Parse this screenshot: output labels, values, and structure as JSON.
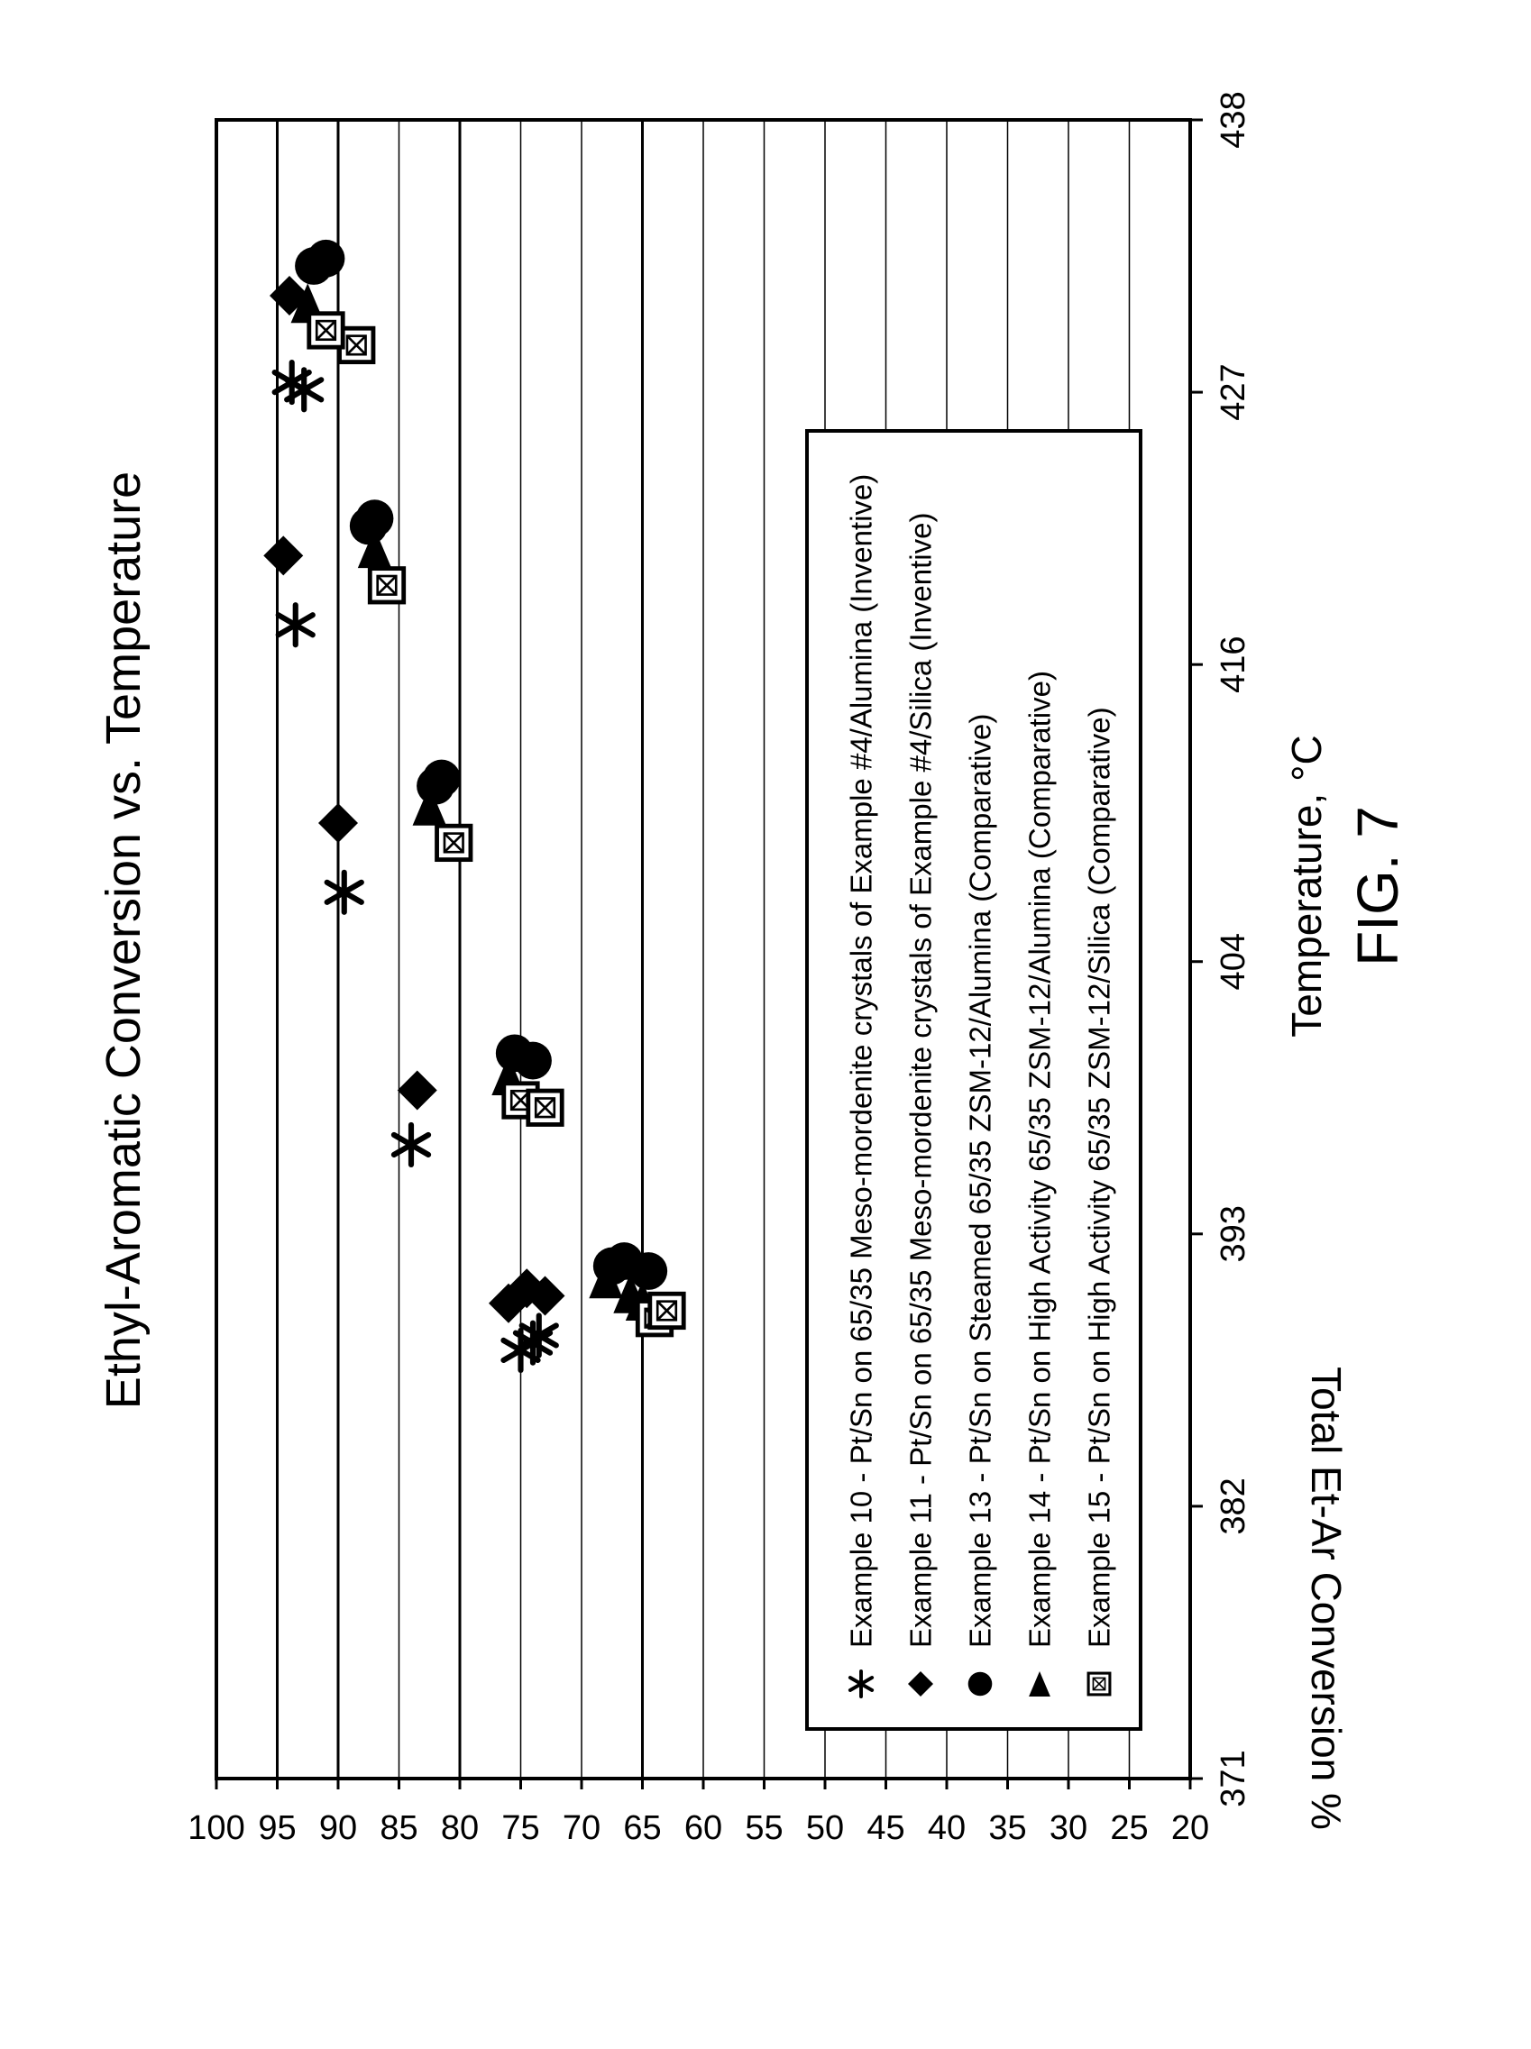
{
  "chart_data": {
    "type": "scatter",
    "title": "Ethyl-Aromatic Conversion vs. Temperature",
    "xlabel": "Temperature, °C",
    "ylabel": "Total Et-Ar Conversion %",
    "xlim": [
      371,
      438
    ],
    "ylim": [
      20,
      100
    ],
    "x_ticks": [
      "371",
      "382",
      "393",
      "404",
      "416",
      "427",
      "438"
    ],
    "y_ticks": [
      "20",
      "25",
      "30",
      "35",
      "40",
      "45",
      "50",
      "55",
      "60",
      "65",
      "70",
      "75",
      "80",
      "85",
      "90",
      "95",
      "100"
    ],
    "major_gridlines": [
      65,
      80,
      90,
      95
    ],
    "grid": true,
    "legend_position": "bottom",
    "series": [
      {
        "name": "Example 10 - Pt/Sn on 65/35 Meso-mordenite crystals of Example #4/Alumina (Inventive)",
        "marker": "asterisk",
        "points": [
          [
            388.3,
            75.0
          ],
          [
            388.6,
            74.0
          ],
          [
            388.9,
            73.5
          ],
          [
            396.6,
            84.0
          ],
          [
            406.8,
            89.5
          ],
          [
            417.6,
            93.5
          ],
          [
            427.1,
            92.8
          ],
          [
            427.4,
            93.8
          ]
        ]
      },
      {
        "name": "Example 11 - Pt/Sn on 65/35 Meso-mordenite crystals of Example #4/Silica (Inventive)",
        "marker": "diamond",
        "points": [
          [
            390.2,
            76.0
          ],
          [
            390.8,
            74.5
          ],
          [
            390.5,
            73.0
          ],
          [
            398.8,
            83.5
          ],
          [
            409.6,
            90.0
          ],
          [
            420.4,
            94.5
          ],
          [
            430.9,
            94.0
          ]
        ]
      },
      {
        "name": "Example 13 - Pt/Sn on Steamed 65/35 ZSM-12/Alumina (Comparative)",
        "marker": "circle",
        "points": [
          [
            391.7,
            67.5
          ],
          [
            391.9,
            66.5
          ],
          [
            391.5,
            64.5
          ],
          [
            400.3,
            75.5
          ],
          [
            400.0,
            74.0
          ],
          [
            411.1,
            82.0
          ],
          [
            411.4,
            81.5
          ],
          [
            421.6,
            87.5
          ],
          [
            421.9,
            87.0
          ],
          [
            432.4,
            91.0
          ],
          [
            432.1,
            92.0
          ]
        ]
      },
      {
        "name": "Example 14 - Pt/Sn on High Activity 65/35 ZSM-12/Alumina (Comparative)",
        "marker": "triangle",
        "points": [
          [
            391.2,
            68.0
          ],
          [
            390.6,
            66.0
          ],
          [
            390.3,
            65.0
          ],
          [
            399.4,
            76.0
          ],
          [
            410.3,
            82.5
          ],
          [
            420.7,
            87.0
          ],
          [
            430.6,
            92.5
          ]
        ]
      },
      {
        "name": "Example 15 - Pt/Sn on High Activity 65/35 ZSM-12/Silica (Comparative)",
        "marker": "boxx",
        "points": [
          [
            389.6,
            64.0
          ],
          [
            389.9,
            63.0
          ],
          [
            398.4,
            75.0
          ],
          [
            398.1,
            73.0
          ],
          [
            408.8,
            80.5
          ],
          [
            419.2,
            86.0
          ],
          [
            428.9,
            88.5
          ],
          [
            429.5,
            91.0
          ]
        ]
      }
    ]
  },
  "caption": "FIG. 7"
}
